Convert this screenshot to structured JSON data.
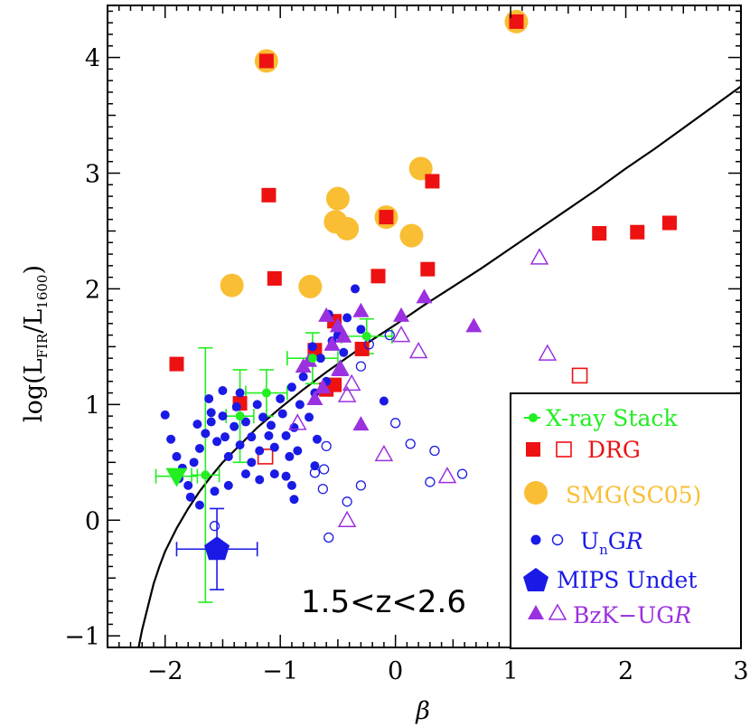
{
  "chart_data": {
    "type": "scatter",
    "xlabel": "β",
    "ylabel": "log(L",
    "ylabel_sub1": "FIR",
    "ylabel_mid": "/L",
    "ylabel_sub2": "1600",
    "ylabel_end": ")",
    "xlim": [
      -2.5,
      3.0
    ],
    "ylim": [
      -1.1,
      4.45
    ],
    "xticks": [
      -2,
      -1,
      0,
      1,
      2,
      3
    ],
    "yticks": [
      -1,
      0,
      1,
      2,
      3,
      4
    ],
    "xtick_labels": [
      "−2",
      "−1",
      "0",
      "1",
      "2",
      "3"
    ],
    "ytick_labels": [
      "−1",
      "0",
      "1",
      "2",
      "3",
      "4"
    ],
    "annotation": "1.5<z<2.6",
    "colors": {
      "xray": "#22ee22",
      "drg": "#ee1111",
      "smg": "#f9be33",
      "ung": "#1a1ae6",
      "mips": "#1a1ae6",
      "bzk": "#9b30e0",
      "curve": "#000000"
    },
    "legend": {
      "placement": "bottom-right",
      "entries": [
        {
          "label": "X-ray Stack",
          "color": "#22ee22"
        },
        {
          "label": "DRG",
          "color": "#ee1111"
        },
        {
          "label": "SMG(SC05)",
          "color": "#f9be33"
        },
        {
          "label": "UnG",
          "script": "R",
          "color": "#1a1ae6"
        },
        {
          "label": "MIPS Undet",
          "color": "#1a1ae6"
        },
        {
          "label": "BzK−UG",
          "script": "R",
          "color": "#9b30e0"
        }
      ],
      "ung_main": "U",
      "ung_sub": "n",
      "ung_rest": "G"
    },
    "series": [
      {
        "name": "SMG(SC05)",
        "marker": "circle-filled",
        "color": "#f9be33",
        "points": [
          [
            -1.12,
            3.97
          ],
          [
            1.05,
            4.31
          ],
          [
            0.22,
            3.04
          ],
          [
            -0.5,
            2.78
          ],
          [
            -0.52,
            2.58
          ],
          [
            -0.42,
            2.52
          ],
          [
            -0.08,
            2.62
          ],
          [
            0.14,
            2.46
          ],
          [
            -1.42,
            2.03
          ],
          [
            -0.74,
            2.02
          ]
        ]
      },
      {
        "name": "DRG",
        "marker": "square-filled",
        "color": "#ee1111",
        "points": [
          [
            -1.12,
            3.97
          ],
          [
            1.05,
            4.31
          ],
          [
            -1.1,
            2.81
          ],
          [
            0.32,
            2.93
          ],
          [
            -0.08,
            2.62
          ],
          [
            -1.05,
            2.09
          ],
          [
            -0.15,
            2.11
          ],
          [
            0.28,
            2.17
          ],
          [
            1.77,
            2.48
          ],
          [
            2.1,
            2.49
          ],
          [
            2.38,
            2.57
          ],
          [
            -1.9,
            1.35
          ],
          [
            -0.7,
            1.47
          ],
          [
            -0.53,
            1.72
          ],
          [
            -0.29,
            1.48
          ],
          [
            -1.35,
            1.01
          ],
          [
            -0.6,
            1.13
          ],
          [
            -0.53,
            1.17
          ]
        ]
      },
      {
        "name": "DRG",
        "marker": "square-open",
        "color": "#ee1111",
        "points": [
          [
            1.6,
            1.25
          ],
          [
            -1.13,
            0.55
          ]
        ]
      },
      {
        "name": "UnGR",
        "marker": "circle-filled-small",
        "color": "#1a1ae6",
        "points": [
          [
            -2.0,
            0.91
          ],
          [
            -1.95,
            0.7
          ],
          [
            -1.9,
            0.55
          ],
          [
            -1.85,
            0.45
          ],
          [
            -1.88,
            0.36
          ],
          [
            -1.8,
            0.3
          ],
          [
            -1.75,
            0.5
          ],
          [
            -1.7,
            0.62
          ],
          [
            -1.65,
            0.75
          ],
          [
            -1.6,
            0.85
          ],
          [
            -1.55,
            0.68
          ],
          [
            -1.5,
            0.9
          ],
          [
            -1.48,
            0.72
          ],
          [
            -1.45,
            0.55
          ],
          [
            -1.4,
            0.81
          ],
          [
            -1.38,
            0.98
          ],
          [
            -1.35,
            0.65
          ],
          [
            -1.3,
            0.85
          ],
          [
            -1.25,
            0.72
          ],
          [
            -1.2,
            1.0
          ],
          [
            -1.18,
            0.6
          ],
          [
            -1.15,
            0.89
          ],
          [
            -1.1,
            0.73
          ],
          [
            -1.08,
            0.82
          ],
          [
            -1.05,
            0.63
          ],
          [
            -1.0,
            1.05
          ],
          [
            -0.98,
            0.92
          ],
          [
            -0.95,
            0.73
          ],
          [
            -0.92,
            0.55
          ],
          [
            -0.9,
            1.15
          ],
          [
            -0.88,
            0.8
          ],
          [
            -0.85,
            0.6
          ],
          [
            -0.83,
            1.0
          ],
          [
            -0.8,
            1.24
          ],
          [
            -0.75,
            0.89
          ],
          [
            -0.72,
            1.5
          ],
          [
            -0.7,
            1.1
          ],
          [
            -0.68,
            0.7
          ],
          [
            -0.65,
            1.4
          ],
          [
            -0.6,
            1.2
          ],
          [
            -0.58,
            1.78
          ],
          [
            -0.55,
            1.55
          ],
          [
            -0.5,
            1.6
          ],
          [
            -0.45,
            1.45
          ],
          [
            -0.42,
            1.75
          ],
          [
            -0.35,
            2.0
          ],
          [
            -0.3,
            1.65
          ],
          [
            -1.78,
            0.2
          ],
          [
            -1.7,
            0.13
          ],
          [
            -1.57,
            0.25
          ],
          [
            -1.45,
            0.3
          ],
          [
            -1.3,
            0.4
          ],
          [
            -1.05,
            0.4
          ],
          [
            -0.9,
            0.3
          ],
          [
            -0.88,
            0.18
          ],
          [
            -0.1,
            1.03
          ],
          [
            -1.5,
            1.12
          ],
          [
            -1.62,
            1.05
          ],
          [
            -0.7,
            0.47
          ],
          [
            -1.25,
            0.5
          ],
          [
            -1.18,
            0.35
          ],
          [
            -0.95,
            0.38
          ],
          [
            -1.6,
            0.93
          ],
          [
            -1.72,
            0.83
          ],
          [
            -1.35,
            1.1
          ]
        ]
      },
      {
        "name": "UnGR",
        "marker": "circle-open-small",
        "color": "#1a1ae6",
        "points": [
          [
            -0.3,
            1.33
          ],
          [
            -0.23,
            1.52
          ],
          [
            -0.05,
            1.6
          ],
          [
            0.0,
            0.84
          ],
          [
            0.13,
            0.66
          ],
          [
            0.34,
            0.6
          ],
          [
            0.3,
            0.33
          ],
          [
            0.58,
            0.4
          ],
          [
            -0.7,
            0.41
          ],
          [
            -0.62,
            0.44
          ],
          [
            -0.6,
            0.64
          ],
          [
            -0.63,
            0.27
          ],
          [
            -0.58,
            -0.15
          ],
          [
            -0.42,
            0.16
          ],
          [
            -0.3,
            0.3
          ],
          [
            -1.57,
            -0.05
          ]
        ]
      },
      {
        "name": "BzK-UGR",
        "marker": "triangle-filled",
        "color": "#9b30e0",
        "points": [
          [
            -0.6,
            1.77
          ],
          [
            -0.5,
            1.68
          ],
          [
            -0.55,
            1.52
          ],
          [
            -0.45,
            1.59
          ],
          [
            -0.48,
            1.3
          ],
          [
            -0.75,
            1.38
          ],
          [
            -0.8,
            1.33
          ],
          [
            -0.7,
            1.05
          ],
          [
            -0.63,
            1.15
          ],
          [
            -0.3,
            1.81
          ],
          [
            0.05,
            1.77
          ],
          [
            0.25,
            1.93
          ],
          [
            0.68,
            1.68
          ],
          [
            -0.3,
            0.83
          ]
        ]
      },
      {
        "name": "BzK-UGR",
        "marker": "triangle-open",
        "color": "#9b30e0",
        "points": [
          [
            1.25,
            2.27
          ],
          [
            1.32,
            1.44
          ],
          [
            0.2,
            1.46
          ],
          [
            0.05,
            1.6
          ],
          [
            -0.1,
            0.57
          ],
          [
            0.45,
            0.38
          ],
          [
            -0.42,
            0.0
          ],
          [
            -0.38,
            1.18
          ],
          [
            -0.42,
            1.08
          ],
          [
            -0.48,
            1.31
          ],
          [
            -0.85,
            0.84
          ]
        ]
      },
      {
        "name": "X-ray Stack",
        "marker": "circle-filled-small",
        "color": "#22ee22",
        "points": [
          [
            -1.65,
            0.39
          ],
          [
            -1.35,
            0.9
          ],
          [
            -1.12,
            1.1
          ],
          [
            -0.72,
            1.4
          ],
          [
            -0.25,
            1.59
          ]
        ],
        "xerr": [
          0.12,
          0.12,
          0.18,
          0.22,
          0.22
        ],
        "yerr": [
          1.1,
          0.4,
          0.2,
          0.22,
          0.15
        ]
      },
      {
        "name": "X-ray Stack",
        "marker": "triangle-down-filled",
        "color": "#22ee22",
        "points": [
          [
            -1.9,
            0.38
          ]
        ],
        "xerr": [
          0.18
        ]
      },
      {
        "name": "MIPS Undet",
        "marker": "pentagon-filled",
        "color": "#1a1ae6",
        "points": [
          [
            -1.55,
            -0.25
          ]
        ],
        "xerr": [
          0.35
        ],
        "yerr": [
          0.35
        ]
      }
    ],
    "curve": {
      "name": "",
      "x": [
        -2.23,
        -2.2,
        -2.15,
        -2.1,
        -2.05,
        -2.0,
        -1.9,
        -1.8,
        -1.7,
        -1.6,
        -1.5,
        -1.4,
        -1.2,
        -1.0,
        -0.8,
        -0.6,
        -0.4,
        -0.2,
        0.0,
        0.25,
        0.5,
        0.75,
        1.0,
        1.25,
        1.5,
        1.75,
        2.0,
        2.25,
        2.5,
        2.75,
        3.0
      ],
      "y": [
        -1.1,
        -0.95,
        -0.75,
        -0.55,
        -0.4,
        -0.27,
        -0.07,
        0.1,
        0.25,
        0.38,
        0.5,
        0.6,
        0.8,
        0.97,
        1.13,
        1.28,
        1.42,
        1.56,
        1.69,
        1.86,
        2.02,
        2.18,
        2.35,
        2.52,
        2.69,
        2.86,
        3.04,
        3.21,
        3.39,
        3.57,
        3.75
      ]
    }
  }
}
